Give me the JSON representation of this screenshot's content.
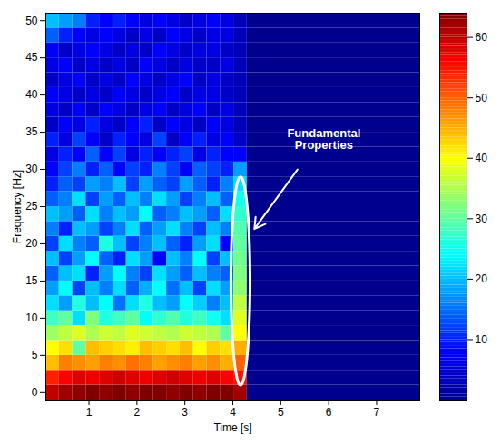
{
  "chart_data": {
    "type": "heatmap",
    "x_label": "Time [s]",
    "y_label": "Frequency [Hz]",
    "xlim": [
      0.1,
      7.9
    ],
    "xticks": [
      1,
      2,
      3,
      4,
      5,
      6,
      7
    ],
    "ylim": [
      -1,
      51
    ],
    "yticks": [
      0,
      5,
      10,
      15,
      20,
      25,
      30,
      35,
      40,
      45,
      50
    ],
    "x_edges": [
      0.1,
      0.38,
      0.66,
      0.94,
      1.22,
      1.5,
      1.78,
      2.06,
      2.34,
      2.62,
      2.9,
      3.18,
      3.46,
      3.74,
      4.02,
      4.3,
      7.9
    ],
    "y_edges": [
      -1,
      1,
      3,
      5,
      7,
      9,
      11,
      13,
      15,
      17,
      19,
      21,
      23,
      25,
      27,
      29,
      31,
      33,
      35,
      37,
      39,
      41,
      43,
      45,
      47,
      49,
      51
    ],
    "values": [
      [
        60,
        62,
        63,
        64,
        63,
        64,
        63,
        64,
        64,
        63,
        64,
        63,
        64,
        64,
        62,
        0
      ],
      [
        54,
        56,
        58,
        57,
        58,
        59,
        58,
        57,
        58,
        59,
        58,
        57,
        58,
        56,
        55,
        0
      ],
      [
        44,
        48,
        47,
        46,
        48,
        47,
        49,
        48,
        46,
        47,
        48,
        46,
        47,
        45,
        50,
        0
      ],
      [
        40,
        42,
        30,
        44,
        43,
        42,
        41,
        44,
        43,
        42,
        44,
        40,
        43,
        42,
        45,
        0
      ],
      [
        34,
        36,
        38,
        35,
        37,
        36,
        38,
        37,
        36,
        35,
        37,
        36,
        35,
        30,
        40,
        0
      ],
      [
        28,
        30,
        22,
        32,
        26,
        28,
        30,
        24,
        27,
        29,
        26,
        28,
        25,
        22,
        38,
        0
      ],
      [
        22,
        18,
        26,
        20,
        24,
        15,
        22,
        26,
        20,
        18,
        24,
        21,
        16,
        20,
        36,
        0
      ],
      [
        18,
        24,
        12,
        20,
        16,
        22,
        14,
        19,
        24,
        15,
        20,
        12,
        22,
        18,
        33,
        0
      ],
      [
        14,
        20,
        22,
        10,
        18,
        24,
        16,
        12,
        22,
        18,
        14,
        20,
        16,
        14,
        32,
        0
      ],
      [
        20,
        12,
        18,
        24,
        14,
        10,
        22,
        18,
        8,
        20,
        16,
        24,
        12,
        20,
        31,
        0
      ],
      [
        12,
        22,
        16,
        14,
        26,
        20,
        12,
        16,
        20,
        14,
        10,
        18,
        22,
        8,
        30,
        0
      ],
      [
        16,
        10,
        20,
        18,
        12,
        16,
        22,
        14,
        18,
        22,
        16,
        12,
        20,
        16,
        29,
        0
      ],
      [
        20,
        18,
        14,
        22,
        16,
        20,
        18,
        24,
        14,
        16,
        20,
        18,
        14,
        22,
        27,
        0
      ],
      [
        14,
        16,
        22,
        12,
        18,
        14,
        20,
        16,
        22,
        18,
        12,
        16,
        20,
        14,
        25,
        0
      ],
      [
        10,
        14,
        12,
        18,
        16,
        20,
        12,
        18,
        14,
        12,
        18,
        14,
        10,
        16,
        22,
        0
      ],
      [
        8,
        12,
        16,
        10,
        14,
        8,
        12,
        10,
        16,
        12,
        8,
        14,
        12,
        10,
        18,
        0
      ],
      [
        6,
        10,
        8,
        14,
        8,
        12,
        6,
        10,
        8,
        10,
        12,
        6,
        10,
        8,
        8,
        0
      ],
      [
        10,
        6,
        12,
        8,
        4,
        10,
        8,
        6,
        12,
        4,
        8,
        10,
        6,
        8,
        4,
        0
      ],
      [
        4,
        8,
        6,
        10,
        6,
        4,
        8,
        10,
        4,
        8,
        6,
        4,
        8,
        6,
        3,
        0
      ],
      [
        6,
        4,
        8,
        4,
        8,
        6,
        4,
        6,
        8,
        4,
        6,
        8,
        4,
        6,
        3,
        0
      ],
      [
        8,
        6,
        4,
        6,
        4,
        8,
        6,
        4,
        6,
        8,
        4,
        6,
        6,
        4,
        3,
        0
      ],
      [
        4,
        6,
        8,
        4,
        6,
        4,
        8,
        6,
        4,
        6,
        8,
        4,
        6,
        4,
        3,
        0
      ],
      [
        6,
        8,
        4,
        6,
        4,
        6,
        4,
        8,
        6,
        4,
        6,
        4,
        4,
        6,
        3,
        0
      ],
      [
        8,
        4,
        6,
        8,
        6,
        4,
        6,
        4,
        8,
        6,
        4,
        6,
        6,
        4,
        3,
        0
      ],
      [
        14,
        10,
        8,
        6,
        8,
        6,
        4,
        6,
        4,
        8,
        6,
        4,
        6,
        6,
        3,
        0
      ],
      [
        20,
        18,
        16,
        10,
        8,
        10,
        8,
        6,
        8,
        6,
        4,
        6,
        8,
        6,
        3,
        0
      ]
    ],
    "color_range": [
      0,
      64
    ],
    "color_ticks": [
      10,
      20,
      30,
      40,
      50,
      60
    ],
    "annotations": [
      {
        "text": "Fundamental Properties"
      }
    ]
  }
}
